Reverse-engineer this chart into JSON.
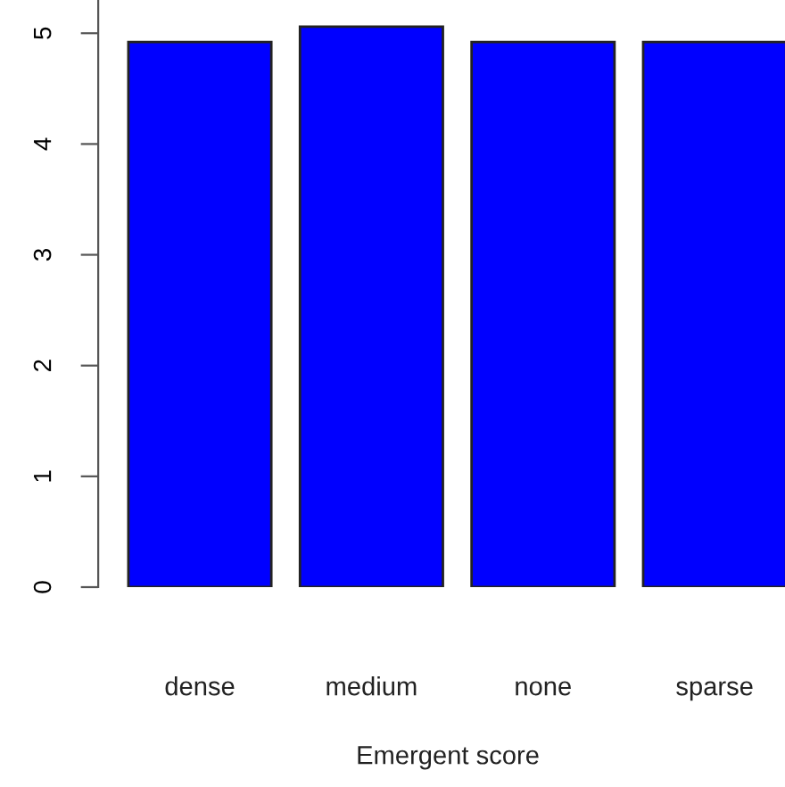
{
  "chart_data": {
    "type": "bar",
    "xlabel": "Emergent score",
    "categories": [
      "dense",
      "medium",
      "none",
      "sparse"
    ],
    "values": [
      4.92,
      5.06,
      4.92,
      4.92
    ],
    "color": "#0000ff",
    "ylim": [
      0,
      5.3
    ],
    "yticks": [
      0,
      1,
      2,
      3,
      4,
      5
    ],
    "grid": false
  }
}
